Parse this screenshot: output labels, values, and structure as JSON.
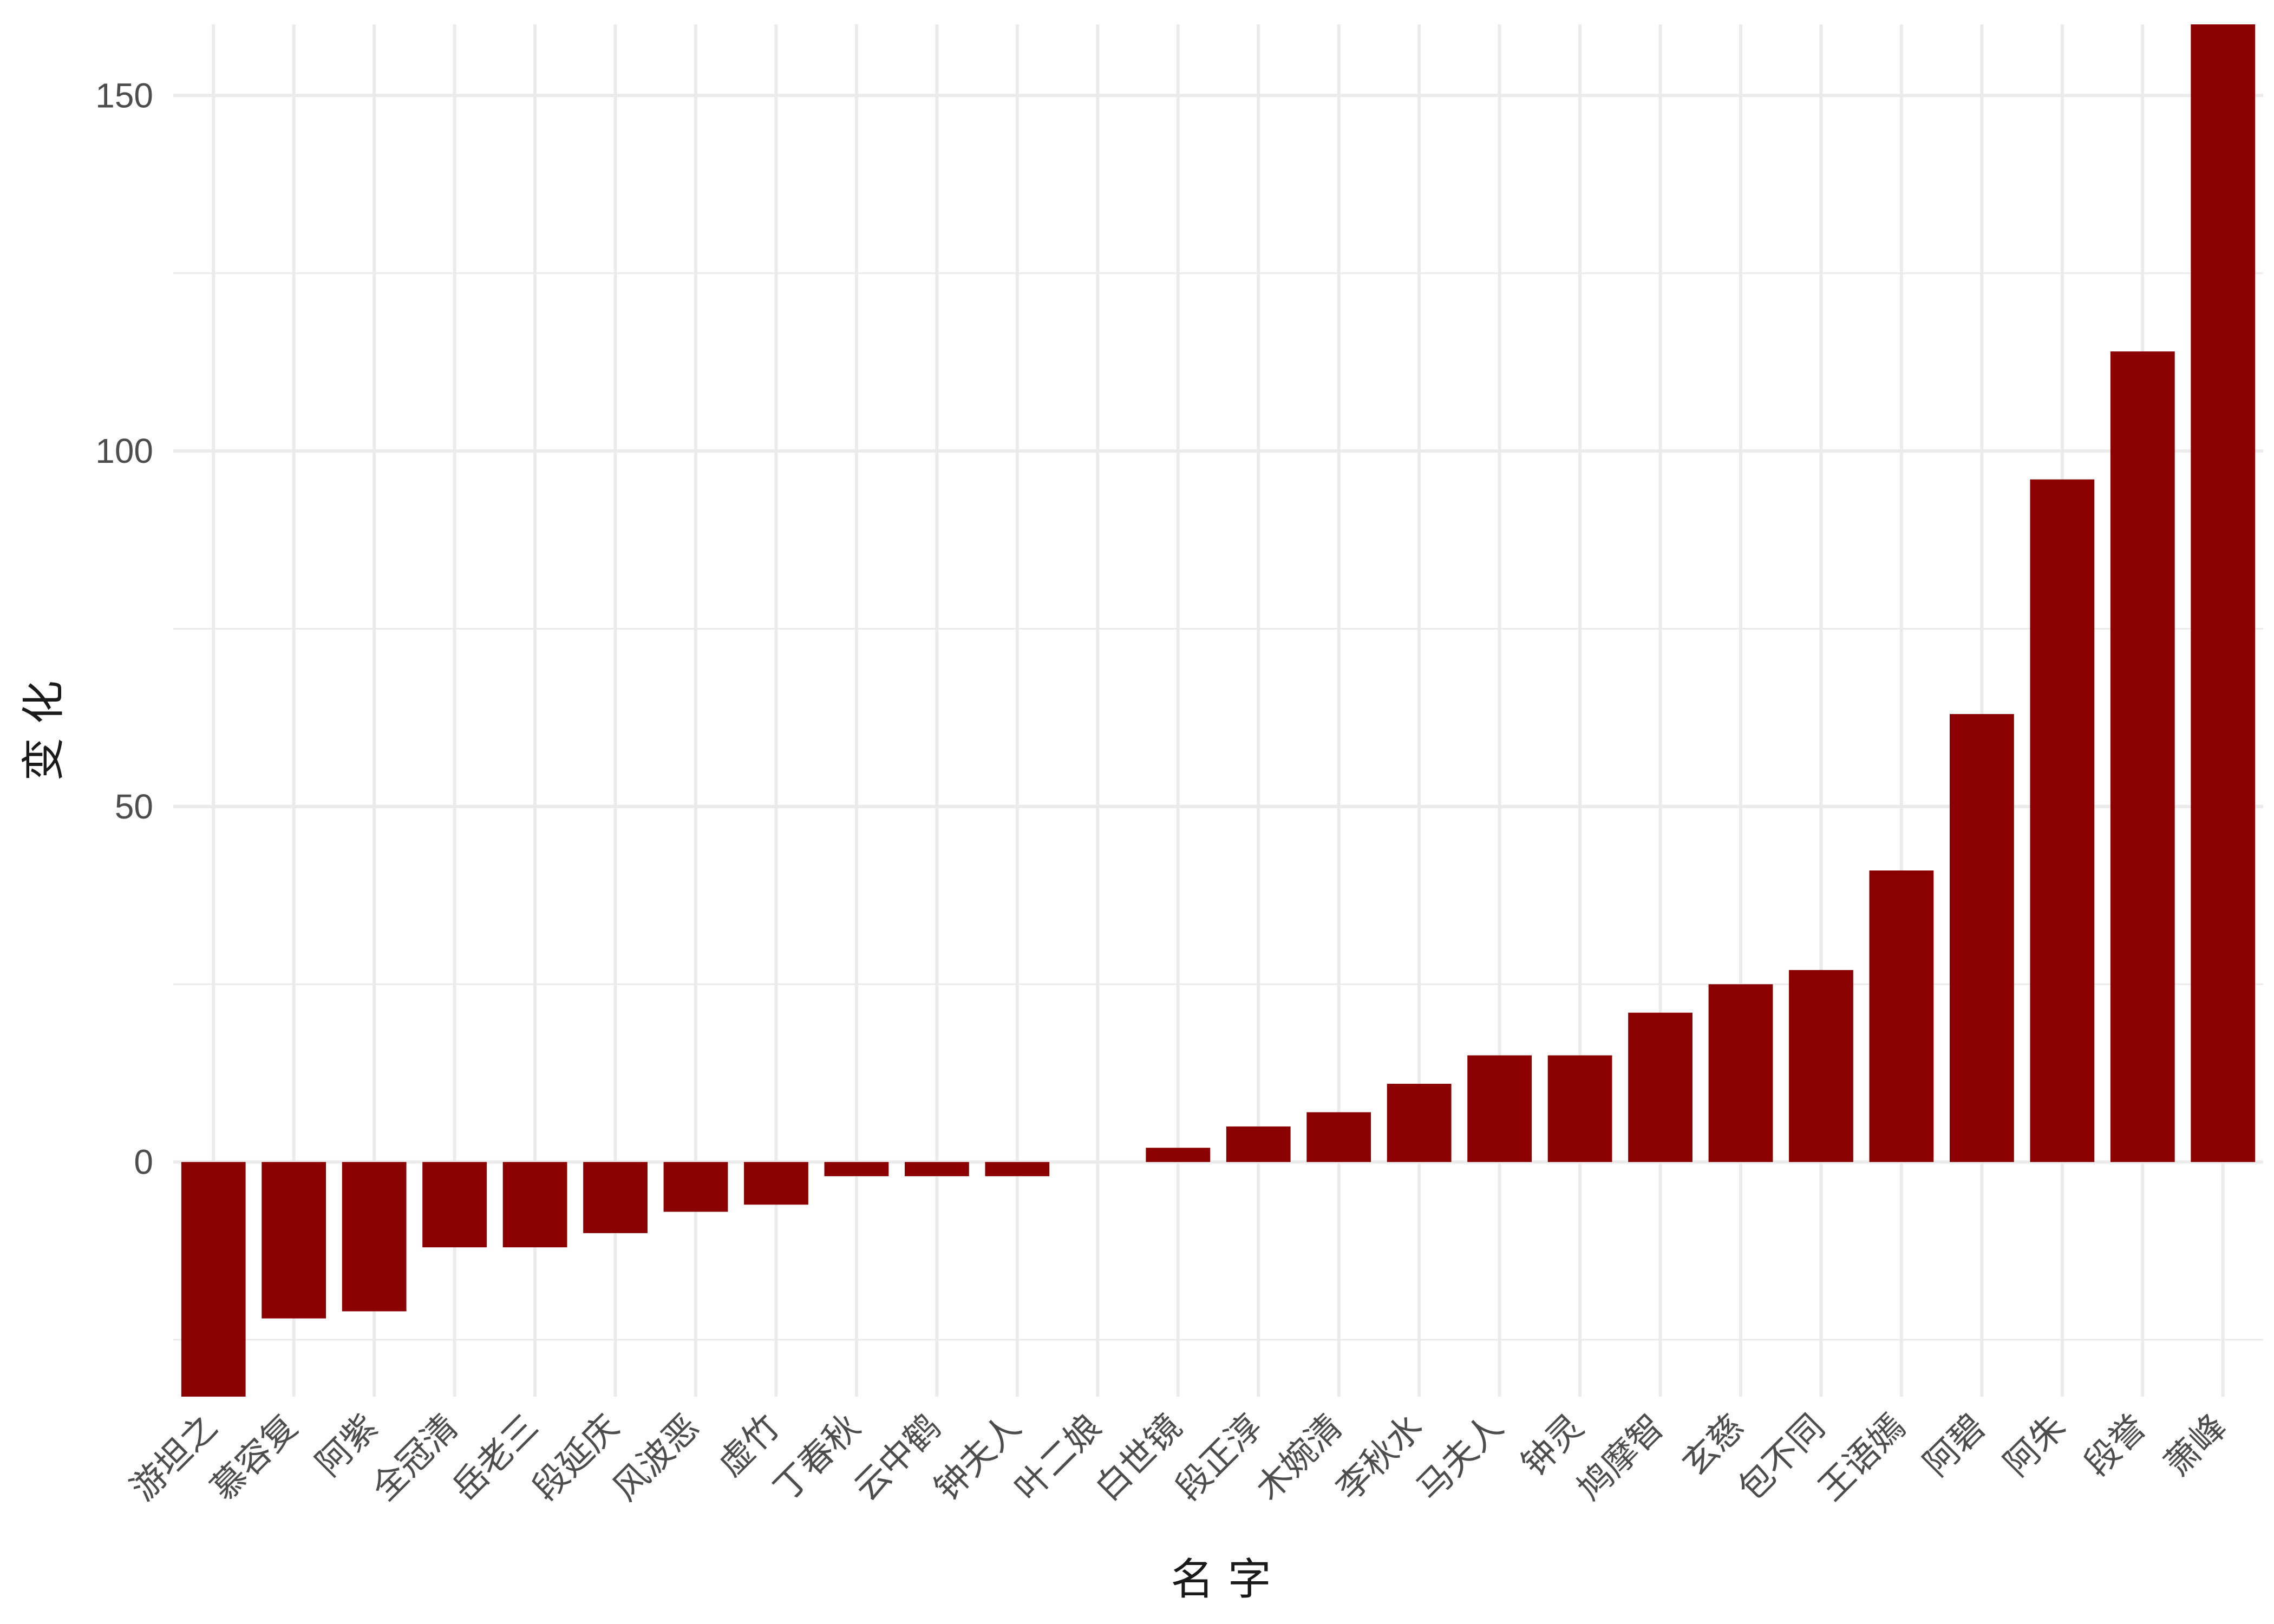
{
  "chart_data": {
    "type": "bar",
    "title": "",
    "xlabel": "名 字",
    "ylabel": "变 化",
    "categories": [
      "游坦之",
      "慕容复",
      "阿紫",
      "全冠清",
      "岳老三",
      "段延庆",
      "风波恶",
      "虚竹",
      "丁春秋",
      "云中鹤",
      "钟夫人",
      "叶二娘",
      "白世镜",
      "段正淳",
      "木婉清",
      "李秋水",
      "马夫人",
      "钟灵",
      "鸠摩智",
      "玄慈",
      "包不同",
      "王语嫣",
      "阿碧",
      "阿朱",
      "段誉",
      "萧峰"
    ],
    "values": [
      -33,
      -22,
      -21,
      -12,
      -12,
      -10,
      -7,
      -6,
      -2,
      -2,
      -2,
      0,
      2,
      5,
      7,
      11,
      15,
      15,
      21,
      25,
      27,
      41,
      63,
      96,
      114,
      160
    ],
    "ylim": [
      -33,
      160
    ],
    "yticks": [
      0,
      50,
      100,
      150
    ],
    "grid": true,
    "legend": "none",
    "bar_color": "#8B0000"
  }
}
